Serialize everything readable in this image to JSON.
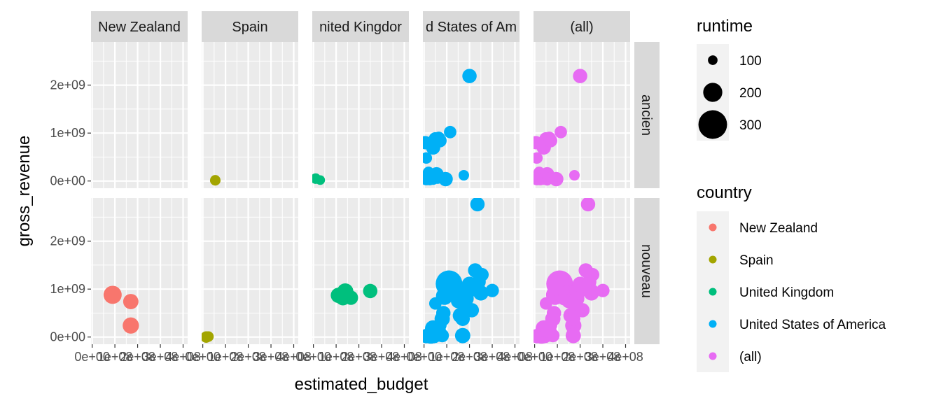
{
  "chart_data": {
    "type": "scatter",
    "x_var": "estimated_budget",
    "y_var": "gross_revenue",
    "xlabel": "estimated_budget",
    "ylabel": "gross_revenue",
    "facet_cols": [
      "New Zealand",
      "Spain",
      "United Kingdom",
      "United States of America",
      "(all)"
    ],
    "facet_col_labels": [
      "New Zealand",
      "Spain",
      "nited Kingdor",
      "d States of Am",
      "(all)"
    ],
    "facet_rows": [
      "ancien",
      "nouveau"
    ],
    "xlim": [
      -5000000,
      420000000
    ],
    "ylim": [
      -150000000,
      2900000000
    ],
    "x_ticks": [
      0,
      100000000,
      200000000,
      300000000,
      400000000
    ],
    "x_tick_labels": [
      "0e+00",
      "1e+08",
      "2e+08",
      "3e+08",
      "4e+08"
    ],
    "y_ticks": [
      0,
      1000000000,
      2000000000
    ],
    "y_tick_labels": [
      "0e+00",
      "1e+09",
      "2e+09"
    ],
    "grid": true,
    "legend_position": "right",
    "colors": {
      "New Zealand": "#F8766D",
      "Spain": "#A3A500",
      "United Kingdom": "#00BF7D",
      "United States of America": "#00B0F6",
      "(all)": "#E76BF3"
    },
    "size_legend": {
      "title": "runtime",
      "values": [
        100,
        200,
        300
      ]
    },
    "color_legend": {
      "title": "country",
      "entries": [
        "New Zealand",
        "Spain",
        "United Kingdom",
        "United States of America",
        "(all)"
      ]
    },
    "points": [
      {
        "country": "Spain",
        "era": "ancien",
        "x": 55000000,
        "y": 15000000,
        "runtime": 110
      },
      {
        "country": "United Kingdom",
        "era": "ancien",
        "x": 10000000,
        "y": 50000000,
        "runtime": 110
      },
      {
        "country": "United Kingdom",
        "era": "ancien",
        "x": 30000000,
        "y": 20000000,
        "runtime": 100
      },
      {
        "country": "United States of America",
        "era": "ancien",
        "x": 5000000,
        "y": 800000000,
        "runtime": 140
      },
      {
        "country": "United States of America",
        "era": "ancien",
        "x": 10000000,
        "y": 480000000,
        "runtime": 120
      },
      {
        "country": "United States of America",
        "era": "ancien",
        "x": 20000000,
        "y": 180000000,
        "runtime": 120
      },
      {
        "country": "United States of America",
        "era": "ancien",
        "x": 40000000,
        "y": 700000000,
        "runtime": 150
      },
      {
        "country": "United States of America",
        "era": "ancien",
        "x": 50000000,
        "y": 880000000,
        "runtime": 140
      },
      {
        "country": "United States of America",
        "era": "ancien",
        "x": 65000000,
        "y": 900000000,
        "runtime": 130
      },
      {
        "country": "United States of America",
        "era": "ancien",
        "x": 70000000,
        "y": 840000000,
        "runtime": 140
      },
      {
        "country": "United States of America",
        "era": "ancien",
        "x": 115000000,
        "y": 1020000000,
        "runtime": 130
      },
      {
        "country": "United States of America",
        "era": "ancien",
        "x": 55000000,
        "y": 140000000,
        "runtime": 150
      },
      {
        "country": "United States of America",
        "era": "ancien",
        "x": 10000000,
        "y": 40000000,
        "runtime": 130
      },
      {
        "country": "United States of America",
        "era": "ancien",
        "x": 25000000,
        "y": 30000000,
        "runtime": 120
      },
      {
        "country": "United States of America",
        "era": "ancien",
        "x": 40000000,
        "y": 50000000,
        "runtime": 130
      },
      {
        "country": "United States of America",
        "era": "ancien",
        "x": 60000000,
        "y": 60000000,
        "runtime": 120
      },
      {
        "country": "United States of America",
        "era": "ancien",
        "x": 95000000,
        "y": 40000000,
        "runtime": 150
      },
      {
        "country": "United States of America",
        "era": "ancien",
        "x": 175000000,
        "y": 120000000,
        "runtime": 110
      },
      {
        "country": "United States of America",
        "era": "ancien",
        "x": 200000000,
        "y": 2190000000,
        "runtime": 150
      },
      {
        "country": "New Zealand",
        "era": "nouveau",
        "x": 90000000,
        "y": 880000000,
        "runtime": 190
      },
      {
        "country": "New Zealand",
        "era": "nouveau",
        "x": 170000000,
        "y": 740000000,
        "runtime": 160
      },
      {
        "country": "New Zealand",
        "era": "nouveau",
        "x": 170000000,
        "y": 240000000,
        "runtime": 170
      },
      {
        "country": "Spain",
        "era": "nouveau",
        "x": 15000000,
        "y": 0,
        "runtime": 120
      },
      {
        "country": "Spain",
        "era": "nouveau",
        "x": 25000000,
        "y": 10000000,
        "runtime": 110
      },
      {
        "country": "United Kingdom",
        "era": "nouveau",
        "x": 110000000,
        "y": 870000000,
        "runtime": 160
      },
      {
        "country": "United Kingdom",
        "era": "nouveau",
        "x": 140000000,
        "y": 950000000,
        "runtime": 170
      },
      {
        "country": "United Kingdom",
        "era": "nouveau",
        "x": 130000000,
        "y": 820000000,
        "runtime": 160
      },
      {
        "country": "United Kingdom",
        "era": "nouveau",
        "x": 165000000,
        "y": 820000000,
        "runtime": 150
      },
      {
        "country": "United Kingdom",
        "era": "nouveau",
        "x": 250000000,
        "y": 960000000,
        "runtime": 150
      },
      {
        "country": "United States of America",
        "era": "nouveau",
        "x": 10000000,
        "y": 20000000,
        "runtime": 150
      },
      {
        "country": "United States of America",
        "era": "nouveau",
        "x": 30000000,
        "y": 40000000,
        "runtime": 180
      },
      {
        "country": "United States of America",
        "era": "nouveau",
        "x": 45000000,
        "y": 10000000,
        "runtime": 140
      },
      {
        "country": "United States of America",
        "era": "nouveau",
        "x": 60000000,
        "y": 60000000,
        "runtime": 160
      },
      {
        "country": "United States of America",
        "era": "nouveau",
        "x": 80000000,
        "y": 30000000,
        "runtime": 140
      },
      {
        "country": "United States of America",
        "era": "nouveau",
        "x": 40000000,
        "y": 180000000,
        "runtime": 170
      },
      {
        "country": "United States of America",
        "era": "nouveau",
        "x": 60000000,
        "y": 150000000,
        "runtime": 170
      },
      {
        "country": "United States of America",
        "era": "nouveau",
        "x": 70000000,
        "y": 250000000,
        "runtime": 140
      },
      {
        "country": "United States of America",
        "era": "nouveau",
        "x": 80000000,
        "y": 380000000,
        "runtime": 160
      },
      {
        "country": "United States of America",
        "era": "nouveau",
        "x": 85000000,
        "y": 500000000,
        "runtime": 150
      },
      {
        "country": "United States of America",
        "era": "nouveau",
        "x": 50000000,
        "y": 700000000,
        "runtime": 130
      },
      {
        "country": "United States of America",
        "era": "nouveau",
        "x": 90000000,
        "y": 850000000,
        "runtime": 180
      },
      {
        "country": "United States of America",
        "era": "nouveau",
        "x": 105000000,
        "y": 950000000,
        "runtime": 200
      },
      {
        "country": "United States of America",
        "era": "nouveau",
        "x": 110000000,
        "y": 1110000000,
        "runtime": 280
      },
      {
        "country": "United States of America",
        "era": "nouveau",
        "x": 140000000,
        "y": 900000000,
        "runtime": 170
      },
      {
        "country": "United States of America",
        "era": "nouveau",
        "x": 150000000,
        "y": 750000000,
        "runtime": 150
      },
      {
        "country": "United States of America",
        "era": "nouveau",
        "x": 160000000,
        "y": 450000000,
        "runtime": 160
      },
      {
        "country": "United States of America",
        "era": "nouveau",
        "x": 170000000,
        "y": 380000000,
        "runtime": 150
      },
      {
        "country": "United States of America",
        "era": "nouveau",
        "x": 170000000,
        "y": 30000000,
        "runtime": 160
      },
      {
        "country": "United States of America",
        "era": "nouveau",
        "x": 175000000,
        "y": 700000000,
        "runtime": 150
      },
      {
        "country": "United States of America",
        "era": "nouveau",
        "x": 185000000,
        "y": 800000000,
        "runtime": 160
      },
      {
        "country": "United States of America",
        "era": "nouveau",
        "x": 190000000,
        "y": 950000000,
        "runtime": 170
      },
      {
        "country": "United States of America",
        "era": "nouveau",
        "x": 200000000,
        "y": 1100000000,
        "runtime": 160
      },
      {
        "country": "United States of America",
        "era": "nouveau",
        "x": 210000000,
        "y": 560000000,
        "runtime": 150
      },
      {
        "country": "United States of America",
        "era": "nouveau",
        "x": 220000000,
        "y": 1010000000,
        "runtime": 140
      },
      {
        "country": "United States of America",
        "era": "nouveau",
        "x": 225000000,
        "y": 1390000000,
        "runtime": 150
      },
      {
        "country": "United States of America",
        "era": "nouveau",
        "x": 240000000,
        "y": 1150000000,
        "runtime": 150
      },
      {
        "country": "United States of America",
        "era": "nouveau",
        "x": 250000000,
        "y": 920000000,
        "runtime": 160
      },
      {
        "country": "United States of America",
        "era": "nouveau",
        "x": 255000000,
        "y": 1300000000,
        "runtime": 140
      },
      {
        "country": "United States of America",
        "era": "nouveau",
        "x": 235000000,
        "y": 2770000000,
        "runtime": 150
      },
      {
        "country": "United States of America",
        "era": "nouveau",
        "x": 300000000,
        "y": 970000000,
        "runtime": 140
      }
    ]
  }
}
